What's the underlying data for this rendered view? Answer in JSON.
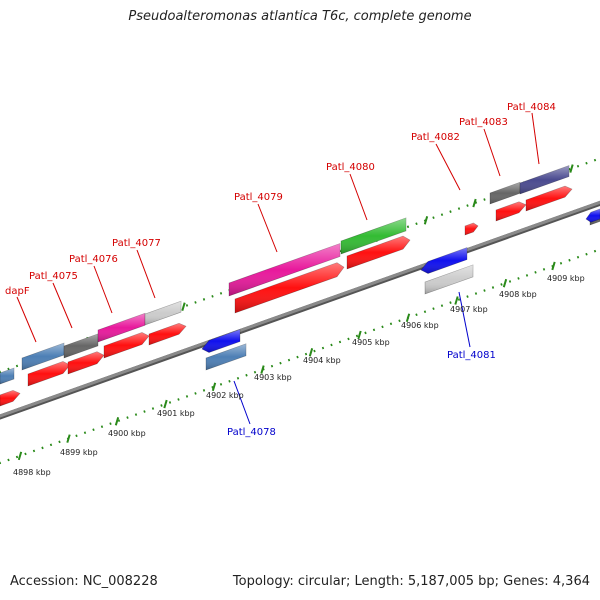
{
  "title": "Pseudoalteromonas atlantica T6c, complete genome",
  "footer": {
    "accession": "Accession: NC_008228",
    "stats": "Topology: circular; Length: 5,187,005 bp; Genes: 4,364"
  },
  "colors": {
    "backbone": "#8a8a8a",
    "tick_dots": "#2a8a1a",
    "label_top": "#d40000",
    "label_bottom": "#0000cc"
  },
  "scale_labels": [
    "4898 kbp",
    "4899 kbp",
    "4900 kbp",
    "4901 kbp",
    "4902 kbp",
    "4903 kbp",
    "4904 kbp",
    "4905 kbp",
    "4906 kbp",
    "4907 kbp",
    "4908 kbp",
    "4909 kbp"
  ],
  "gene_labels_top": [
    "dapF",
    "Patl_4075",
    "Patl_4076",
    "Patl_4077",
    "Patl_4079",
    "Patl_4080",
    "Patl_4082",
    "Patl_4083",
    "Patl_4084"
  ],
  "gene_labels_bottom": [
    "Patl_4078",
    "Patl_4081"
  ]
}
